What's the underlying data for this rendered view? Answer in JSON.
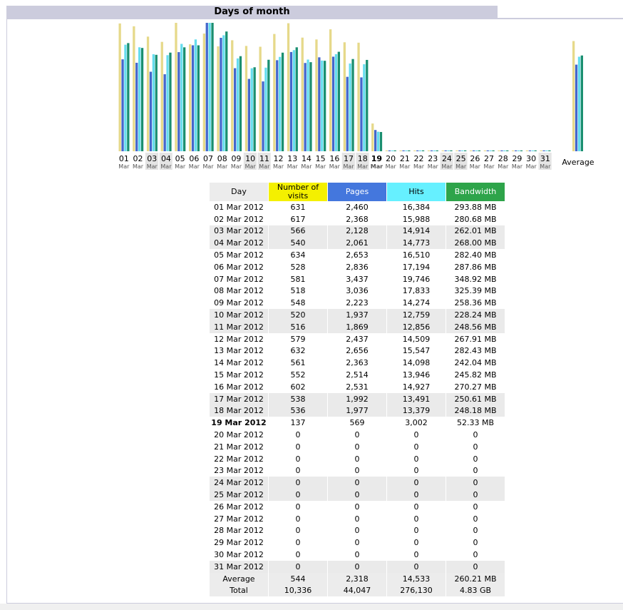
{
  "header": {
    "title": "Days of month"
  },
  "chart_data": {
    "type": "bar",
    "categories": [
      "01",
      "02",
      "03",
      "04",
      "05",
      "06",
      "07",
      "08",
      "09",
      "10",
      "11",
      "12",
      "13",
      "14",
      "15",
      "16",
      "17",
      "18",
      "19",
      "20",
      "21",
      "22",
      "23",
      "24",
      "25",
      "26",
      "27",
      "28",
      "29",
      "30",
      "31"
    ],
    "category_sublabel": "Mar",
    "weekend_days": [
      "03",
      "04",
      "10",
      "11",
      "17",
      "18",
      "24",
      "25",
      "31"
    ],
    "highlight_day": "19",
    "average_label": "Average",
    "series": [
      {
        "name": "Number of visits",
        "color": "#e6d98a",
        "values": [
          631,
          617,
          566,
          540,
          634,
          528,
          581,
          518,
          548,
          520,
          516,
          579,
          632,
          561,
          552,
          602,
          538,
          536,
          137,
          0,
          0,
          0,
          0,
          0,
          0,
          0,
          0,
          0,
          0,
          0,
          0
        ],
        "average": 544
      },
      {
        "name": "Pages",
        "color": "#4466cc",
        "values": [
          2460,
          2368,
          2128,
          2061,
          2653,
          2836,
          3437,
          3036,
          2223,
          1937,
          1869,
          2437,
          2656,
          2363,
          2514,
          2531,
          1992,
          1977,
          569,
          0,
          0,
          0,
          0,
          0,
          0,
          0,
          0,
          0,
          0,
          0,
          0
        ],
        "average": 2318
      },
      {
        "name": "Hits",
        "color": "#66ddee",
        "values": [
          16384,
          15988,
          14914,
          14773,
          16510,
          17194,
          19746,
          17833,
          14274,
          12759,
          12856,
          14509,
          15547,
          14098,
          13946,
          14927,
          13491,
          13379,
          3002,
          0,
          0,
          0,
          0,
          0,
          0,
          0,
          0,
          0,
          0,
          0,
          0
        ],
        "average": 14533
      },
      {
        "name": "Bandwidth",
        "color": "#1a8f70",
        "values": [
          293.88,
          280.68,
          262.01,
          268.0,
          282.4,
          287.86,
          348.92,
          325.39,
          258.36,
          228.24,
          248.56,
          267.91,
          282.43,
          242.04,
          245.82,
          270.27,
          250.61,
          248.18,
          52.33,
          0,
          0,
          0,
          0,
          0,
          0,
          0,
          0,
          0,
          0,
          0,
          0
        ],
        "average": 260.21
      }
    ]
  },
  "table": {
    "headers": {
      "day": "Day",
      "visits": "Number of visits",
      "pages": "Pages",
      "hits": "Hits",
      "bandwidth": "Bandwidth"
    },
    "rows": [
      {
        "day": "01 Mar 2012",
        "visits": "631",
        "pages": "2,460",
        "hits": "16,384",
        "bw": "293.88 MB",
        "we": false
      },
      {
        "day": "02 Mar 2012",
        "visits": "617",
        "pages": "2,368",
        "hits": "15,988",
        "bw": "280.68 MB",
        "we": false
      },
      {
        "day": "03 Mar 2012",
        "visits": "566",
        "pages": "2,128",
        "hits": "14,914",
        "bw": "262.01 MB",
        "we": true
      },
      {
        "day": "04 Mar 2012",
        "visits": "540",
        "pages": "2,061",
        "hits": "14,773",
        "bw": "268.00 MB",
        "we": true
      },
      {
        "day": "05 Mar 2012",
        "visits": "634",
        "pages": "2,653",
        "hits": "16,510",
        "bw": "282.40 MB",
        "we": false
      },
      {
        "day": "06 Mar 2012",
        "visits": "528",
        "pages": "2,836",
        "hits": "17,194",
        "bw": "287.86 MB",
        "we": false
      },
      {
        "day": "07 Mar 2012",
        "visits": "581",
        "pages": "3,437",
        "hits": "19,746",
        "bw": "348.92 MB",
        "we": false
      },
      {
        "day": "08 Mar 2012",
        "visits": "518",
        "pages": "3,036",
        "hits": "17,833",
        "bw": "325.39 MB",
        "we": false
      },
      {
        "day": "09 Mar 2012",
        "visits": "548",
        "pages": "2,223",
        "hits": "14,274",
        "bw": "258.36 MB",
        "we": false
      },
      {
        "day": "10 Mar 2012",
        "visits": "520",
        "pages": "1,937",
        "hits": "12,759",
        "bw": "228.24 MB",
        "we": true
      },
      {
        "day": "11 Mar 2012",
        "visits": "516",
        "pages": "1,869",
        "hits": "12,856",
        "bw": "248.56 MB",
        "we": true
      },
      {
        "day": "12 Mar 2012",
        "visits": "579",
        "pages": "2,437",
        "hits": "14,509",
        "bw": "267.91 MB",
        "we": false
      },
      {
        "day": "13 Mar 2012",
        "visits": "632",
        "pages": "2,656",
        "hits": "15,547",
        "bw": "282.43 MB",
        "we": false
      },
      {
        "day": "14 Mar 2012",
        "visits": "561",
        "pages": "2,363",
        "hits": "14,098",
        "bw": "242.04 MB",
        "we": false
      },
      {
        "day": "15 Mar 2012",
        "visits": "552",
        "pages": "2,514",
        "hits": "13,946",
        "bw": "245.82 MB",
        "we": false
      },
      {
        "day": "16 Mar 2012",
        "visits": "602",
        "pages": "2,531",
        "hits": "14,927",
        "bw": "270.27 MB",
        "we": false
      },
      {
        "day": "17 Mar 2012",
        "visits": "538",
        "pages": "1,992",
        "hits": "13,491",
        "bw": "250.61 MB",
        "we": true
      },
      {
        "day": "18 Mar 2012",
        "visits": "536",
        "pages": "1,977",
        "hits": "13,379",
        "bw": "248.18 MB",
        "we": true
      },
      {
        "day": "19 Mar 2012",
        "visits": "137",
        "pages": "569",
        "hits": "3,002",
        "bw": "52.33 MB",
        "we": false,
        "today": true
      },
      {
        "day": "20 Mar 2012",
        "visits": "0",
        "pages": "0",
        "hits": "0",
        "bw": "0",
        "we": false
      },
      {
        "day": "21 Mar 2012",
        "visits": "0",
        "pages": "0",
        "hits": "0",
        "bw": "0",
        "we": false
      },
      {
        "day": "22 Mar 2012",
        "visits": "0",
        "pages": "0",
        "hits": "0",
        "bw": "0",
        "we": false
      },
      {
        "day": "23 Mar 2012",
        "visits": "0",
        "pages": "0",
        "hits": "0",
        "bw": "0",
        "we": false
      },
      {
        "day": "24 Mar 2012",
        "visits": "0",
        "pages": "0",
        "hits": "0",
        "bw": "0",
        "we": true
      },
      {
        "day": "25 Mar 2012",
        "visits": "0",
        "pages": "0",
        "hits": "0",
        "bw": "0",
        "we": true
      },
      {
        "day": "26 Mar 2012",
        "visits": "0",
        "pages": "0",
        "hits": "0",
        "bw": "0",
        "we": false
      },
      {
        "day": "27 Mar 2012",
        "visits": "0",
        "pages": "0",
        "hits": "0",
        "bw": "0",
        "we": false
      },
      {
        "day": "28 Mar 2012",
        "visits": "0",
        "pages": "0",
        "hits": "0",
        "bw": "0",
        "we": false
      },
      {
        "day": "29 Mar 2012",
        "visits": "0",
        "pages": "0",
        "hits": "0",
        "bw": "0",
        "we": false
      },
      {
        "day": "30 Mar 2012",
        "visits": "0",
        "pages": "0",
        "hits": "0",
        "bw": "0",
        "we": false
      },
      {
        "day": "31 Mar 2012",
        "visits": "0",
        "pages": "0",
        "hits": "0",
        "bw": "0",
        "we": true
      }
    ],
    "average": {
      "label": "Average",
      "visits": "544",
      "pages": "2,318",
      "hits": "14,533",
      "bw": "260.21 MB"
    },
    "total": {
      "label": "Total",
      "visits": "10,336",
      "pages": "44,047",
      "hits": "276,130",
      "bw": "4.83 GB"
    }
  }
}
